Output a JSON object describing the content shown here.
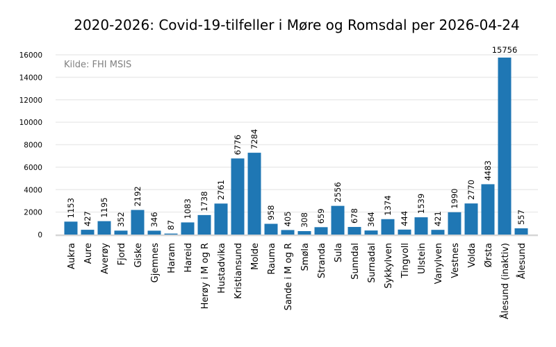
{
  "chart_data": {
    "type": "bar",
    "title": "2020-2026: Covid-19-tilfeller i Møre og Romsdal per 2026-04-24",
    "annotation": "Kilde: FHI MSIS",
    "xlabel": "",
    "ylabel": "",
    "ylim": [
      0,
      16500
    ],
    "yticks": [
      0,
      2000,
      4000,
      6000,
      8000,
      10000,
      12000,
      14000,
      16000
    ],
    "grid": true,
    "bar_color": "#1f77b4",
    "categories": [
      "Aukra",
      "Aure",
      "Averøy",
      "Fjord",
      "Giske",
      "Gjemnes",
      "Haram",
      "Hareid",
      "Herøy i M og R",
      "Hustadvika",
      "Kristiansund",
      "Molde",
      "Rauma",
      "Sande i M og R",
      "Smøla",
      "Stranda",
      "Sula",
      "Sunndal",
      "Surnadal",
      "Sykkylven",
      "Tingvoll",
      "Ulstein",
      "Vanylven",
      "Vestnes",
      "Volda",
      "Ørsta",
      "Ålesund (inaktiv)",
      "Ålesund"
    ],
    "values": [
      1153,
      427,
      1195,
      352,
      2192,
      346,
      87,
      1083,
      1738,
      2761,
      6776,
      7284,
      958,
      405,
      308,
      659,
      2556,
      678,
      364,
      1374,
      444,
      1539,
      421,
      1990,
      2770,
      4483,
      15756,
      557
    ]
  }
}
